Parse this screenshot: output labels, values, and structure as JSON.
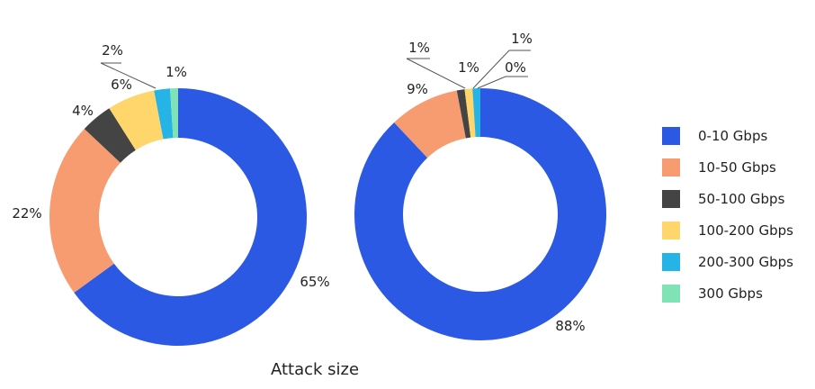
{
  "caption": "Attack size",
  "colors": [
    "#2b59e3",
    "#f79c71",
    "#444444",
    "#fed66b",
    "#26b3e6",
    "#7fe3b6"
  ],
  "chart_data": {
    "type": "donut",
    "xlabel": "Attack size",
    "categories": [
      "0-10 Gbps",
      "10-50 Gbps",
      "50-100 Gbps",
      "100-200 Gbps",
      "200-300 Gbps",
      "300 Gbps"
    ],
    "legend_position": "right",
    "charts": [
      {
        "values": [
          65,
          22,
          4,
          6,
          2,
          1
        ],
        "labels": [
          "65%",
          "22%",
          "4%",
          "6%",
          "2%",
          "1%"
        ]
      },
      {
        "values": [
          88,
          9,
          1,
          1,
          1,
          0
        ],
        "labels": [
          "88%",
          "9%",
          "1%",
          "1%",
          "1%",
          "0%"
        ]
      }
    ]
  }
}
